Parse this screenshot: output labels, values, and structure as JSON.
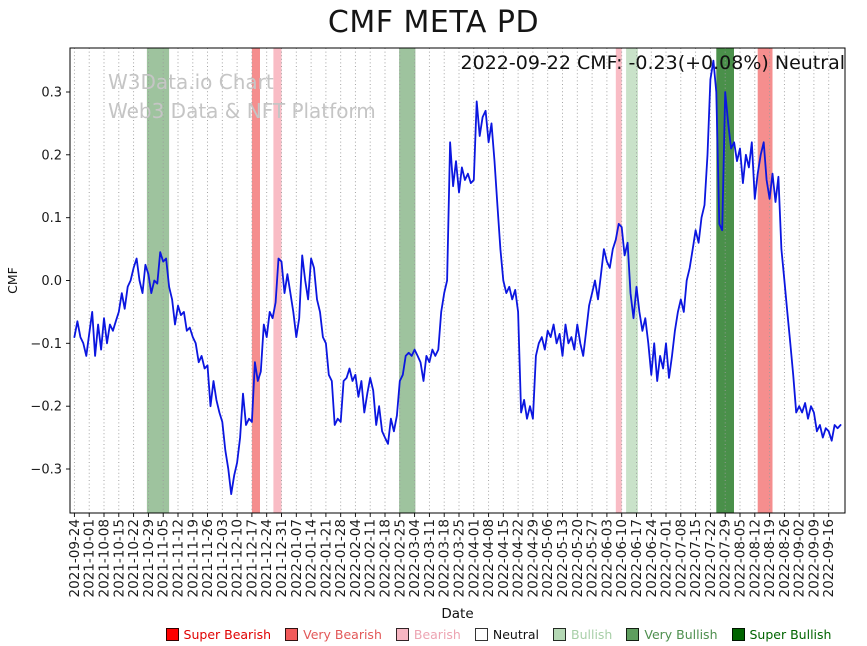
{
  "chart_data": {
    "type": "line",
    "title": "CMF META PD",
    "annotation": "2022-09-22 CMF: -0.23(+0.08%) Neutral",
    "watermark": [
      "W3Data.io Chart",
      "Web3 Data & NFT Platform"
    ],
    "xlabel": "Date",
    "ylabel": "CMF",
    "ylim": [
      -0.37,
      0.37
    ],
    "yticks": [
      -0.3,
      -0.2,
      -0.1,
      0.0,
      0.1,
      0.2,
      0.3
    ],
    "xlim_weeks": [
      -0.3,
      52.1
    ],
    "grid_color": "#9a9a9a",
    "line_color": "#0b16e0",
    "x_tick_labels": [
      "2021-09-24",
      "2021-10-01",
      "2021-10-08",
      "2021-10-15",
      "2021-10-22",
      "2021-10-29",
      "2021-11-05",
      "2021-11-12",
      "2021-11-19",
      "2021-11-26",
      "2021-12-03",
      "2021-12-10",
      "2021-12-17",
      "2021-12-24",
      "2021-12-31",
      "2022-01-07",
      "2022-01-14",
      "2022-01-21",
      "2022-01-28",
      "2022-02-04",
      "2022-02-11",
      "2022-02-18",
      "2022-02-25",
      "2022-03-04",
      "2022-03-11",
      "2022-03-18",
      "2022-03-25",
      "2022-04-01",
      "2022-04-08",
      "2022-04-15",
      "2022-04-22",
      "2022-04-29",
      "2022-05-06",
      "2022-05-13",
      "2022-05-20",
      "2022-05-27",
      "2022-06-03",
      "2022-06-10",
      "2022-06-17",
      "2022-06-24",
      "2022-07-01",
      "2022-07-08",
      "2022-07-15",
      "2022-07-22",
      "2022-07-29",
      "2022-08-05",
      "2022-08-12",
      "2022-08-19",
      "2022-08-26",
      "2022-09-02",
      "2022-09-09",
      "2022-09-16"
    ],
    "series": [
      {
        "name": "CMF",
        "x_start_week": 0,
        "x_step_week": 0.2,
        "values_by_week": [
          [
            -0.09,
            -0.065,
            -0.09,
            -0.1,
            -0.12
          ],
          [
            -0.085,
            -0.05,
            -0.12,
            -0.07,
            -0.11
          ],
          [
            -0.06,
            -0.1,
            -0.07,
            -0.08,
            -0.065
          ],
          [
            -0.05,
            -0.02,
            -0.045,
            -0.01,
            0.0
          ],
          [
            0.02,
            0.035,
            0.0,
            -0.02,
            0.025
          ],
          [
            0.01,
            -0.02,
            0.0,
            -0.005,
            0.045
          ],
          [
            0.03,
            0.035,
            -0.01,
            -0.03,
            -0.07
          ],
          [
            -0.04,
            -0.055,
            -0.05,
            -0.08,
            -0.075
          ],
          [
            -0.09,
            -0.1,
            -0.13,
            -0.12,
            -0.14
          ],
          [
            -0.135,
            -0.2,
            -0.16,
            -0.19,
            -0.21
          ],
          [
            -0.225,
            -0.27,
            -0.3,
            -0.34,
            -0.31
          ],
          [
            -0.29,
            -0.25,
            -0.18,
            -0.23,
            -0.22
          ],
          [
            -0.225,
            -0.13,
            -0.16,
            -0.145,
            -0.07
          ],
          [
            -0.09,
            -0.05,
            -0.06,
            -0.035,
            0.035
          ],
          [
            0.03,
            -0.02,
            0.01,
            -0.02,
            -0.05
          ],
          [
            -0.09,
            -0.06,
            0.04,
            0.0,
            -0.03
          ],
          [
            0.035,
            0.02,
            -0.03,
            -0.05,
            -0.09
          ],
          [
            -0.1,
            -0.15,
            -0.16,
            -0.23,
            -0.22
          ],
          [
            -0.225,
            -0.16,
            -0.155,
            -0.14,
            -0.16
          ],
          [
            -0.15,
            -0.185,
            -0.16,
            -0.21,
            -0.18
          ],
          [
            -0.155,
            -0.175,
            -0.23,
            -0.2,
            -0.24
          ],
          [
            -0.25,
            -0.26,
            -0.22,
            -0.24,
            -0.215
          ],
          [
            -0.16,
            -0.15,
            -0.12,
            -0.115,
            -0.12
          ],
          [
            -0.11,
            -0.12,
            -0.13,
            -0.16,
            -0.12
          ],
          [
            -0.13,
            -0.11,
            -0.12,
            -0.11,
            -0.05
          ],
          [
            -0.02,
            0.0,
            0.22,
            0.15,
            0.19
          ],
          [
            0.14,
            0.18,
            0.16,
            0.17,
            0.155
          ],
          [
            0.16,
            0.285,
            0.23,
            0.26,
            0.27
          ],
          [
            0.22,
            0.25,
            0.19,
            0.12,
            0.05
          ],
          [
            0.0,
            -0.02,
            -0.01,
            -0.03,
            -0.015
          ],
          [
            -0.05,
            -0.21,
            -0.19,
            -0.22,
            -0.2
          ],
          [
            -0.22,
            -0.12,
            -0.1,
            -0.09,
            -0.11
          ],
          [
            -0.08,
            -0.09,
            -0.07,
            -0.1,
            -0.085
          ],
          [
            -0.12,
            -0.07,
            -0.1,
            -0.09,
            -0.11
          ],
          [
            -0.07,
            -0.1,
            -0.12,
            -0.08,
            -0.04
          ],
          [
            -0.02,
            0.0,
            -0.03,
            0.01,
            0.05
          ],
          [
            0.03,
            0.02,
            0.05,
            0.065,
            0.09
          ],
          [
            0.085,
            0.04,
            0.06,
            -0.02,
            -0.06
          ],
          [
            -0.01,
            -0.05,
            -0.08,
            -0.06,
            -0.1
          ],
          [
            -0.15,
            -0.1,
            -0.16,
            -0.12,
            -0.14
          ],
          [
            -0.1,
            -0.155,
            -0.12,
            -0.08,
            -0.05
          ],
          [
            -0.03,
            -0.05,
            0.0,
            0.02,
            0.05
          ],
          [
            0.08,
            0.06,
            0.1,
            0.12,
            0.2
          ],
          [
            0.32,
            0.35,
            0.3,
            0.09,
            0.08
          ],
          [
            0.3,
            0.25,
            0.21,
            0.22,
            0.19
          ],
          [
            0.21,
            0.155,
            0.2,
            0.18,
            0.22
          ],
          [
            0.13,
            0.17,
            0.2,
            0.22,
            0.16
          ],
          [
            0.13,
            0.17,
            0.125,
            0.165,
            0.05
          ],
          [
            0.0,
            -0.05,
            -0.1,
            -0.15,
            -0.21
          ],
          [
            -0.2,
            -0.21,
            -0.195,
            -0.22,
            -0.2
          ],
          [
            -0.21,
            -0.24,
            -0.23,
            -0.25,
            -0.235
          ],
          [
            -0.24,
            -0.255,
            -0.23,
            -0.235,
            -0.23
          ]
        ]
      }
    ],
    "signal_bands": [
      {
        "from": 4.9,
        "to": 6.4,
        "level": "very_bullish"
      },
      {
        "from": 12.0,
        "to": 12.55,
        "level": "very_bearish"
      },
      {
        "from": 13.45,
        "to": 14.0,
        "level": "bearish"
      },
      {
        "from": 21.95,
        "to": 23.05,
        "level": "very_bullish"
      },
      {
        "from": 36.6,
        "to": 37.0,
        "level": "bearish"
      },
      {
        "from": 37.3,
        "to": 38.1,
        "level": "bullish"
      },
      {
        "from": 43.4,
        "to": 44.6,
        "level": "very_bullish_strong"
      },
      {
        "from": 46.2,
        "to": 47.2,
        "level": "very_bearish"
      }
    ],
    "band_colors": {
      "bearish": "rgba(247,166,178,0.75)",
      "very_bearish": "rgba(240,82,82,0.65)",
      "bullish": "rgba(178,213,178,0.7)",
      "very_bullish": "rgba(98,158,98,0.62)",
      "very_bullish_strong": "rgba(42,124,42,0.85)"
    },
    "legend": {
      "items": [
        {
          "label": "Super Bearish",
          "swatch": "#ff0000",
          "text": "#e00000"
        },
        {
          "label": "Very Bearish",
          "swatch": "#f25a5a",
          "text": "#e25757"
        },
        {
          "label": "Bearish",
          "swatch": "#f7b6c2",
          "text": "#eda4b2"
        },
        {
          "label": "Neutral",
          "swatch": "#ffffff",
          "text": "#111111"
        },
        {
          "label": "Bullish",
          "swatch": "#b4d8b4",
          "text": "#a8cfa8"
        },
        {
          "label": "Very Bullish",
          "swatch": "#5f9e5f",
          "text": "#4e8f4e"
        },
        {
          "label": "Super Bullish",
          "swatch": "#006400",
          "text": "#006400"
        }
      ]
    }
  }
}
